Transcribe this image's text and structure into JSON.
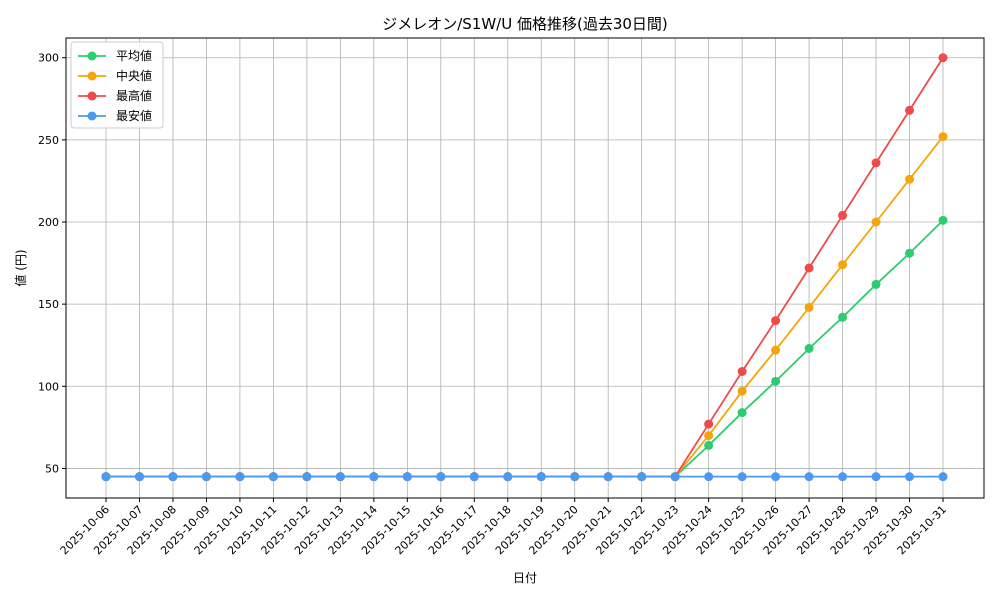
{
  "chart_data": {
    "type": "line",
    "title": "ジメレオン/S1W/U 価格推移(過去30日間)",
    "xlabel": "日付",
    "ylabel": "値 (円)",
    "ylim": [
      32,
      312
    ],
    "yticks": [
      50,
      100,
      150,
      200,
      250,
      300
    ],
    "grid": true,
    "legend_position": "top-left",
    "categories": [
      "2025-10-06",
      "2025-10-07",
      "2025-10-08",
      "2025-10-09",
      "2025-10-10",
      "2025-10-11",
      "2025-10-12",
      "2025-10-13",
      "2025-10-14",
      "2025-10-15",
      "2025-10-16",
      "2025-10-17",
      "2025-10-18",
      "2025-10-19",
      "2025-10-20",
      "2025-10-21",
      "2025-10-22",
      "2025-10-23",
      "2025-10-24",
      "2025-10-25",
      "2025-10-26",
      "2025-10-27",
      "2025-10-28",
      "2025-10-29",
      "2025-10-30",
      "2025-10-31"
    ],
    "series": [
      {
        "name": "平均値",
        "color": "#2ecc71",
        "values": [
          45,
          45,
          45,
          45,
          45,
          45,
          45,
          45,
          45,
          45,
          45,
          45,
          45,
          45,
          45,
          45,
          45,
          45,
          64,
          84,
          103,
          123,
          142,
          162,
          181,
          201
        ]
      },
      {
        "name": "中央値",
        "color": "#f5a50a",
        "values": [
          45,
          45,
          45,
          45,
          45,
          45,
          45,
          45,
          45,
          45,
          45,
          45,
          45,
          45,
          45,
          45,
          45,
          45,
          70,
          97,
          122,
          148,
          174,
          200,
          226,
          252
        ]
      },
      {
        "name": "最高値",
        "color": "#ef4b4b",
        "values": [
          45,
          45,
          45,
          45,
          45,
          45,
          45,
          45,
          45,
          45,
          45,
          45,
          45,
          45,
          45,
          45,
          45,
          45,
          77,
          109,
          140,
          172,
          204,
          236,
          268,
          300
        ]
      },
      {
        "name": "最安値",
        "color": "#4a9bf0",
        "values": [
          45,
          45,
          45,
          45,
          45,
          45,
          45,
          45,
          45,
          45,
          45,
          45,
          45,
          45,
          45,
          45,
          45,
          45,
          45,
          45,
          45,
          45,
          45,
          45,
          45,
          45
        ]
      }
    ]
  }
}
